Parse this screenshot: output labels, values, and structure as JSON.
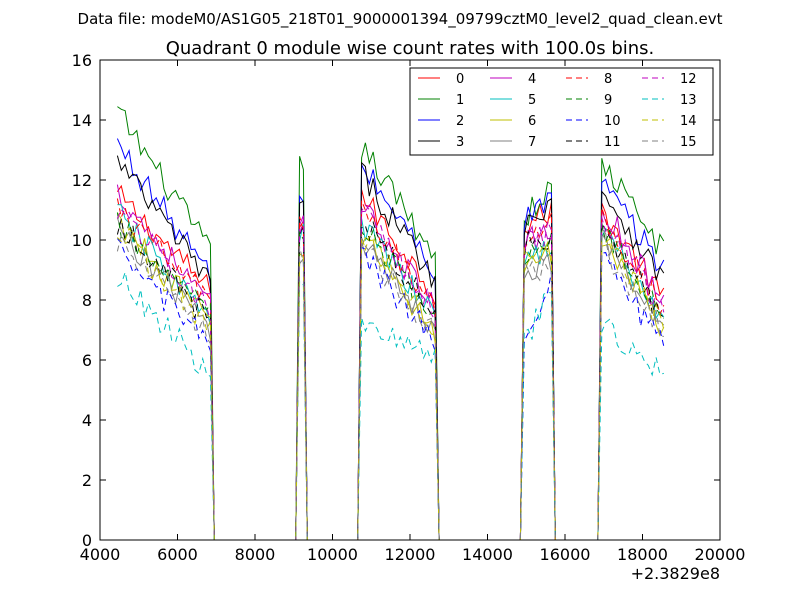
{
  "figure": {
    "suptitle": "Data file: modeM0/AS1G05_218T01_9000001394_09799cztM0_level2_quad_clean.evt"
  },
  "chart_data": {
    "type": "line",
    "title": "Quadrant 0 module wise count rates with 100.0s bins.",
    "xlabel": "",
    "ylabel": "",
    "x_offset_label": "+2.3829e8",
    "xlim": [
      4000,
      20000
    ],
    "ylim": [
      0,
      16
    ],
    "xticks": [
      4000,
      6000,
      8000,
      10000,
      12000,
      14000,
      16000,
      18000,
      20000
    ],
    "yticks": [
      0,
      2,
      4,
      6,
      8,
      10,
      12,
      14,
      16
    ],
    "grid": false,
    "legend": {
      "placement": "top-right",
      "columns": 4
    },
    "segments": [
      {
        "t_start": 4450,
        "t_end": 6850
      },
      {
        "t_start": 9100,
        "t_end": 9300
      },
      {
        "t_start": 10700,
        "t_end": 12650
      },
      {
        "t_start": 14900,
        "t_end": 15650
      },
      {
        "t_start": 16950,
        "t_end": 18550
      }
    ],
    "gaps_level": 0,
    "series": [
      {
        "name": "0",
        "color": "#ff0000",
        "dash": "solid",
        "levels": [
          [
            11.5,
            8.3
          ],
          [
            10.8
          ],
          [
            11.6,
            8.2
          ],
          [
            10.4,
            11.0
          ],
          [
            11.0,
            8.0
          ]
        ]
      },
      {
        "name": "1",
        "color": "#008000",
        "dash": "solid",
        "levels": [
          [
            14.3,
            9.6
          ],
          [
            12.4
          ],
          [
            13.2,
            9.5
          ],
          [
            10.7,
            11.7
          ],
          [
            12.6,
            9.6
          ]
        ]
      },
      {
        "name": "2",
        "color": "#0000ff",
        "dash": "solid",
        "levels": [
          [
            13.2,
            8.8
          ],
          [
            11.2
          ],
          [
            12.6,
            9.0
          ],
          [
            10.5,
            11.5
          ],
          [
            11.9,
            9.0
          ]
        ]
      },
      {
        "name": "3",
        "color": "#000000",
        "dash": "solid",
        "levels": [
          [
            12.6,
            8.6
          ],
          [
            11.1
          ],
          [
            12.3,
            8.7
          ],
          [
            10.3,
            11.4
          ],
          [
            11.7,
            8.6
          ]
        ]
      },
      {
        "name": "4",
        "color": "#bf00bf",
        "dash": "solid",
        "levels": [
          [
            11.6,
            7.8
          ],
          [
            10.5
          ],
          [
            11.2,
            7.7
          ],
          [
            9.9,
            10.2
          ],
          [
            11.2,
            7.9
          ]
        ]
      },
      {
        "name": "5",
        "color": "#00bfbf",
        "dash": "solid",
        "levels": [
          [
            10.9,
            7.3
          ],
          [
            10.1
          ],
          [
            10.6,
            7.4
          ],
          [
            9.4,
            9.8
          ],
          [
            10.4,
            7.2
          ]
        ]
      },
      {
        "name": "6",
        "color": "#bfbf00",
        "dash": "solid",
        "levels": [
          [
            10.6,
            7.2
          ],
          [
            9.8
          ],
          [
            10.2,
            6.9
          ],
          [
            9.2,
            9.5
          ],
          [
            10.2,
            6.9
          ]
        ]
      },
      {
        "name": "7",
        "color": "#808080",
        "dash": "solid",
        "levels": [
          [
            10.4,
            7.0
          ],
          [
            9.6
          ],
          [
            10.0,
            7.0
          ],
          [
            9.0,
            9.3
          ],
          [
            10.0,
            7.0
          ]
        ]
      },
      {
        "name": "8",
        "color": "#ff0000",
        "dash": "dashed",
        "levels": [
          [
            11.0,
            8.0
          ],
          [
            10.4
          ],
          [
            11.0,
            7.9
          ],
          [
            10.0,
            10.5
          ],
          [
            10.8,
            7.7
          ]
        ]
      },
      {
        "name": "9",
        "color": "#008000",
        "dash": "dashed",
        "levels": [
          [
            10.5,
            7.5
          ],
          [
            10.0
          ],
          [
            10.5,
            7.4
          ],
          [
            9.5,
            9.9
          ],
          [
            10.4,
            7.3
          ]
        ]
      },
      {
        "name": "10",
        "color": "#0000ff",
        "dash": "dashed",
        "levels": [
          [
            9.6,
            6.5
          ],
          [
            9.2
          ],
          [
            9.6,
            6.6
          ],
          [
            6.9,
            8.7
          ],
          [
            9.5,
            6.4
          ]
        ]
      },
      {
        "name": "11",
        "color": "#000000",
        "dash": "dashed",
        "levels": [
          [
            10.6,
            7.3
          ],
          [
            10.2
          ],
          [
            10.8,
            7.5
          ],
          [
            9.8,
            10.1
          ],
          [
            10.6,
            7.4
          ]
        ]
      },
      {
        "name": "12",
        "color": "#bf00bf",
        "dash": "dashed",
        "levels": [
          [
            11.1,
            7.7
          ],
          [
            10.3
          ],
          [
            11.0,
            7.6
          ],
          [
            9.9,
            10.3
          ],
          [
            10.9,
            7.6
          ]
        ]
      },
      {
        "name": "13",
        "color": "#00bfbf",
        "dash": "dashed",
        "levels": [
          [
            8.8,
            5.5
          ],
          [
            8.9
          ],
          [
            7.0,
            6.2
          ],
          [
            6.4,
            8.3
          ],
          [
            7.2,
            5.6
          ]
        ]
      },
      {
        "name": "14",
        "color": "#bfbf00",
        "dash": "dashed",
        "levels": [
          [
            10.4,
            7.0
          ],
          [
            9.7
          ],
          [
            10.3,
            7.1
          ],
          [
            9.3,
            9.6
          ],
          [
            10.3,
            7.1
          ]
        ]
      },
      {
        "name": "15",
        "color": "#808080",
        "dash": "dashed",
        "levels": [
          [
            9.9,
            6.8
          ],
          [
            9.4
          ],
          [
            9.9,
            6.8
          ],
          [
            8.9,
            9.2
          ],
          [
            9.8,
            6.9
          ]
        ]
      }
    ]
  }
}
